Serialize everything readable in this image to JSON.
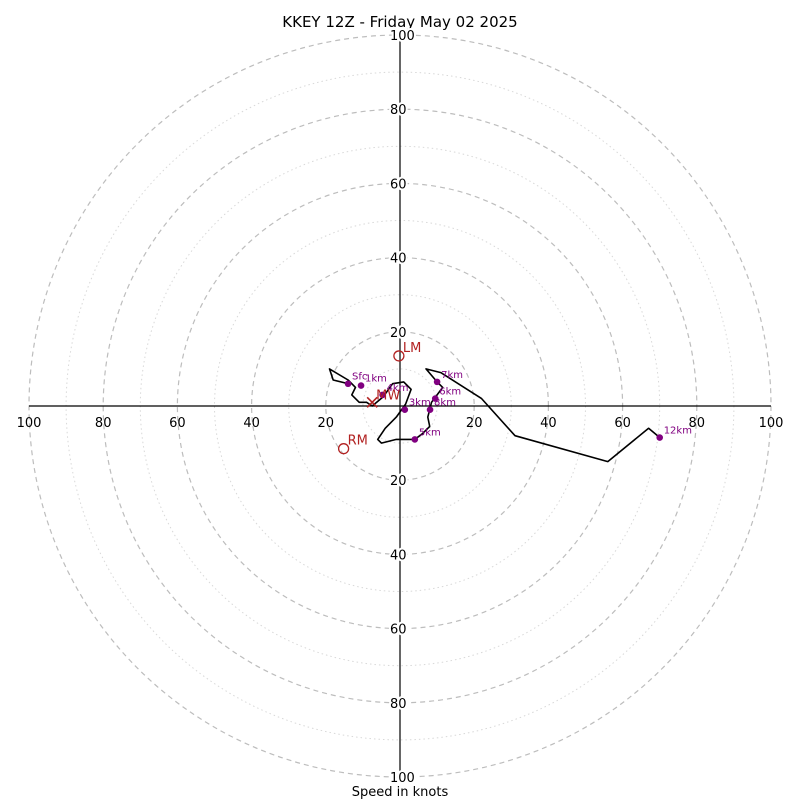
{
  "chart_data": {
    "type": "scatter",
    "subtype": "hodograph",
    "title": "KKEY 12Z - Friday May 02 2025",
    "xlabel": "Speed in knots",
    "units": "knots",
    "range": [
      -100,
      100
    ],
    "rings_major": [
      20,
      40,
      60,
      80,
      100
    ],
    "rings_minor": [
      10,
      30,
      50,
      70,
      90
    ],
    "tick_labels_x": [
      "100",
      "80",
      "60",
      "40",
      "20",
      "20",
      "40",
      "60",
      "80",
      "100"
    ],
    "tick_values_x": [
      -100,
      -80,
      -60,
      -40,
      -20,
      20,
      40,
      60,
      80,
      100
    ],
    "tick_labels_y": [
      "100",
      "80",
      "60",
      "40",
      "20",
      "20",
      "40",
      "60",
      "80",
      "100"
    ],
    "tick_values_y": [
      100,
      80,
      60,
      40,
      20,
      -20,
      -40,
      -60,
      -80,
      -100
    ],
    "trace": [
      {
        "u": -13.5,
        "v": 5.9
      },
      {
        "u": -18,
        "v": 7
      },
      {
        "u": -19,
        "v": 10
      },
      {
        "u": -14,
        "v": 7
      },
      {
        "u": -12,
        "v": 5
      },
      {
        "u": -13,
        "v": 3
      },
      {
        "u": -11,
        "v": 1
      },
      {
        "u": -9,
        "v": 1
      },
      {
        "u": -7.5,
        "v": 0
      },
      {
        "u": -4.5,
        "v": 2.5
      },
      {
        "u": -2,
        "v": 6
      },
      {
        "u": 1,
        "v": 6.5
      },
      {
        "u": 3,
        "v": 4.5
      },
      {
        "u": 1.5,
        "v": 0.5
      },
      {
        "u": -1,
        "v": -3
      },
      {
        "u": -4,
        "v": -6
      },
      {
        "u": -6,
        "v": -9
      },
      {
        "u": -5,
        "v": -10
      },
      {
        "u": -1,
        "v": -9
      },
      {
        "u": 4,
        "v": -9
      },
      {
        "u": 6,
        "v": -7.5
      },
      {
        "u": 8,
        "v": -5.5
      },
      {
        "u": 7.5,
        "v": -3
      },
      {
        "u": 8,
        "v": -1
      },
      {
        "u": 8.5,
        "v": 1
      },
      {
        "u": 10,
        "v": 3
      },
      {
        "u": 11.5,
        "v": 5
      },
      {
        "u": 10,
        "v": 6.5
      },
      {
        "u": 7,
        "v": 10
      },
      {
        "u": 11,
        "v": 9
      },
      {
        "u": 22,
        "v": 2
      },
      {
        "u": 31,
        "v": -8
      },
      {
        "u": 56,
        "v": -15
      },
      {
        "u": 67,
        "v": -6
      },
      {
        "u": 70,
        "v": -8.5
      }
    ],
    "height_markers": [
      {
        "label": "Sfc",
        "u": -14,
        "v": 6
      },
      {
        "label": "1km",
        "u": -10.5,
        "v": 5.5
      },
      {
        "label": "4km",
        "u": -4.7,
        "v": 3
      },
      {
        "label": "3km",
        "u": 1.3,
        "v": -1
      },
      {
        "label": "8km",
        "u": 8.1,
        "v": -1
      },
      {
        "label": "6km",
        "u": 9.5,
        "v": 2
      },
      {
        "label": "7km",
        "u": 10,
        "v": 6.5
      },
      {
        "label": "5km",
        "u": 4,
        "v": -9
      },
      {
        "label": "12km",
        "u": 70,
        "v": -8.5
      }
    ],
    "storm_motion": [
      {
        "label": "LM",
        "u": -0.3,
        "v": 13.5
      },
      {
        "label": "RM",
        "u": -15.2,
        "v": -11.5
      },
      {
        "label": "MW",
        "u": -7.5,
        "v": 1
      }
    ],
    "colors": {
      "trace": "#000000",
      "markers": "#800080",
      "storm_motion": "#b22222",
      "rings": "#bdbdbd"
    }
  }
}
